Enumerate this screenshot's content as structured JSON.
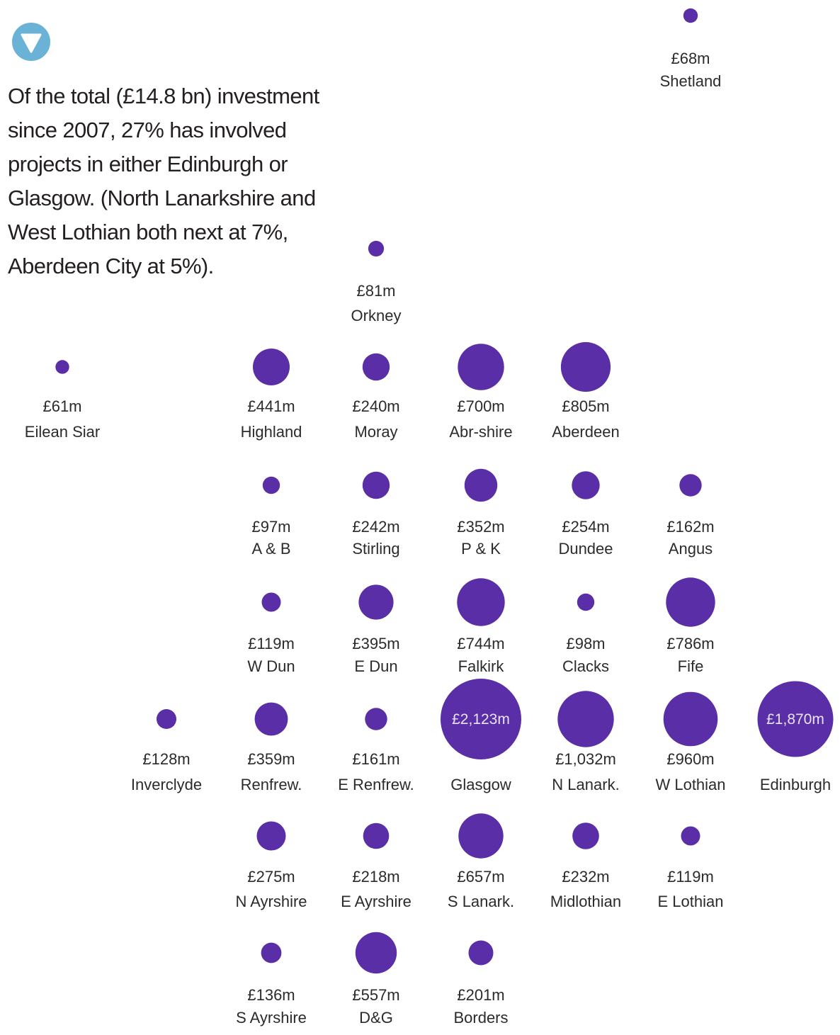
{
  "intro_text": "Of the total (£14.8 bn) investment since 2007, 27% has involved projects in either Edinburgh or Glasgow. (North Lanarkshire and West Lothian both next at 7%, Aberdeen City at 5%).",
  "icon": "triangle-down-marker-icon",
  "colors": {
    "bubble": "#5a2ea6",
    "marker": "#6bb3d6",
    "text": "#2b2b2b"
  },
  "chart_data": {
    "type": "bubble-grid",
    "unit": "£m",
    "size_by": "value",
    "points": [
      {
        "region": "Shetland",
        "value": 68,
        "label": "£68m"
      },
      {
        "region": "Orkney",
        "value": 81,
        "label": "£81m"
      },
      {
        "region": "Eilean Siar",
        "value": 61,
        "label": "£61m"
      },
      {
        "region": "Highland",
        "value": 441,
        "label": "£441m"
      },
      {
        "region": "Moray",
        "value": 240,
        "label": "£240m"
      },
      {
        "region": "Abr-shire",
        "value": 700,
        "label": "£700m"
      },
      {
        "region": "Aberdeen",
        "value": 805,
        "label": "£805m"
      },
      {
        "region": "A & B",
        "value": 97,
        "label": "£97m"
      },
      {
        "region": "Stirling",
        "value": 242,
        "label": "£242m"
      },
      {
        "region": "P & K",
        "value": 352,
        "label": "£352m"
      },
      {
        "region": "Dundee",
        "value": 254,
        "label": "£254m"
      },
      {
        "region": "Angus",
        "value": 162,
        "label": "£162m"
      },
      {
        "region": "W Dun",
        "value": 119,
        "label": "£119m"
      },
      {
        "region": "E Dun",
        "value": 395,
        "label": "£395m"
      },
      {
        "region": "Falkirk",
        "value": 744,
        "label": "£744m"
      },
      {
        "region": "Clacks",
        "value": 98,
        "label": "£98m"
      },
      {
        "region": "Fife",
        "value": 786,
        "label": "£786m"
      },
      {
        "region": "Inverclyde",
        "value": 128,
        "label": "£128m"
      },
      {
        "region": "Renfrew.",
        "value": 359,
        "label": "£359m"
      },
      {
        "region": "E Renfrew.",
        "value": 161,
        "label": "£161m"
      },
      {
        "region": "Glasgow",
        "value": 2123,
        "label": "£2,123m"
      },
      {
        "region": "N Lanark.",
        "value": 1032,
        "label": "£1,032m"
      },
      {
        "region": "W Lothian",
        "value": 960,
        "label": "£960m"
      },
      {
        "region": "Edinburgh",
        "value": 1870,
        "label": "£1,870m"
      },
      {
        "region": "N Ayrshire",
        "value": 275,
        "label": "£275m"
      },
      {
        "region": "E Ayrshire",
        "value": 218,
        "label": "£218m"
      },
      {
        "region": "S Lanark.",
        "value": 657,
        "label": "£657m"
      },
      {
        "region": "Midlothian",
        "value": 232,
        "label": "£232m"
      },
      {
        "region": "E Lothian",
        "value": 119,
        "label": "£119m"
      },
      {
        "region": "S Ayrshire",
        "value": 136,
        "label": "£136m"
      },
      {
        "region": "D&G",
        "value": 557,
        "label": "£557m"
      },
      {
        "region": "Borders",
        "value": 201,
        "label": "£201m"
      }
    ]
  }
}
